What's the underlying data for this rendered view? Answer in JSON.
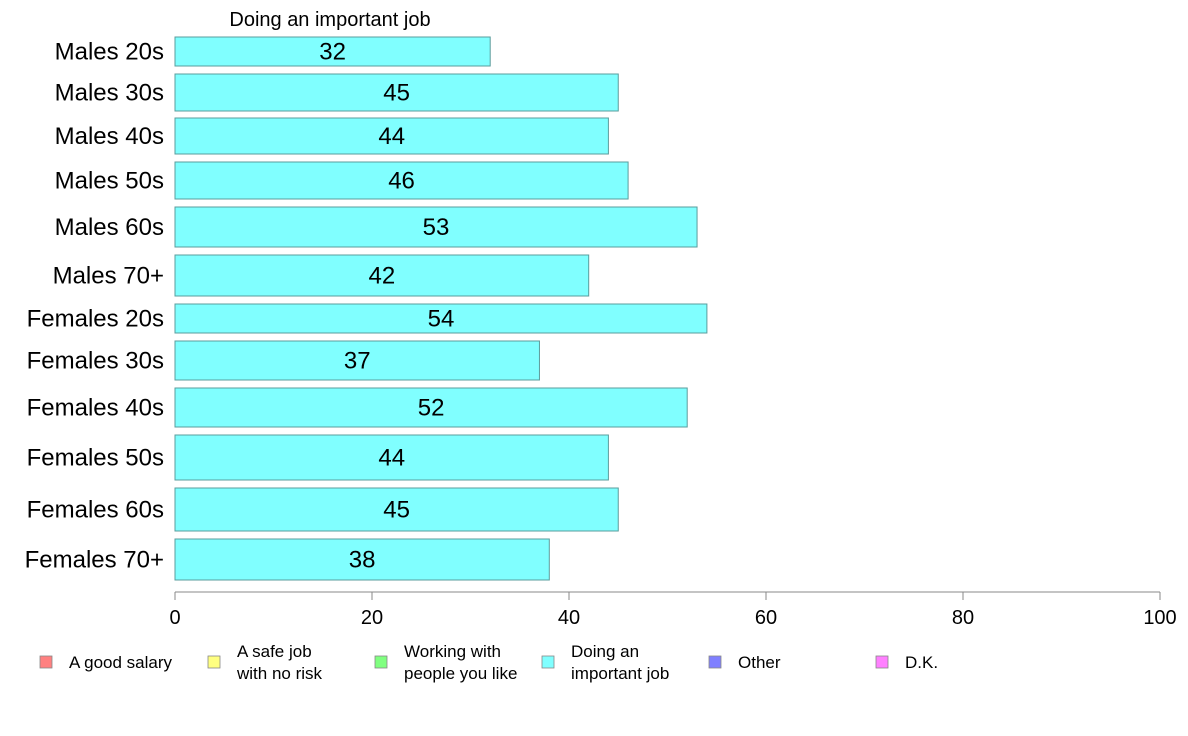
{
  "chart_data": {
    "type": "bar",
    "orientation": "horizontal",
    "title": "Doing an important job",
    "categories": [
      "Males 20s",
      "Males 30s",
      "Males 40s",
      "Males 50s",
      "Males 60s",
      "Males 70+",
      "Females 20s",
      "Females 30s",
      "Females 40s",
      "Females 50s",
      "Females 60s",
      "Females 70+"
    ],
    "series": [
      {
        "name": "Doing an important job",
        "color": "#80ffff",
        "values": [
          32,
          45,
          44,
          46,
          53,
          42,
          54,
          37,
          52,
          44,
          45,
          38
        ]
      }
    ],
    "xlim": [
      0,
      100
    ],
    "xticks": [
      0,
      20,
      40,
      60,
      80,
      100
    ],
    "grid": false,
    "legend_position": "bottom",
    "legend": [
      {
        "label": "A good salary",
        "color": "#ff8080"
      },
      {
        "label": "A safe job\nwith no risk",
        "color": "#ffff80"
      },
      {
        "label": "Working with\npeople you like",
        "color": "#80ff80"
      },
      {
        "label": "Doing an\nimportant job",
        "color": "#80ffff"
      },
      {
        "label": "Other",
        "color": "#8080ff"
      },
      {
        "label": "D.K.",
        "color": "#ff80ff"
      }
    ]
  }
}
